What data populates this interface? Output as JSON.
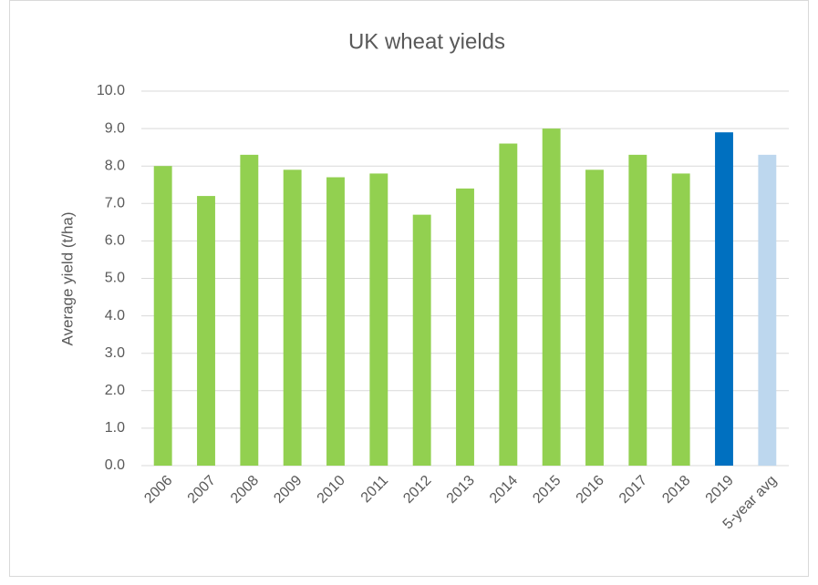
{
  "chart_data": {
    "type": "bar",
    "title": "UK wheat yields",
    "y_label": "Average yield (t/ha)",
    "categories": [
      "2006",
      "2007",
      "2008",
      "2009",
      "2010",
      "2011",
      "2012",
      "2013",
      "2014",
      "2015",
      "2016",
      "2017",
      "2018",
      "2019",
      "5-year avg"
    ],
    "values": [
      8.0,
      7.2,
      8.3,
      7.9,
      7.7,
      7.8,
      6.7,
      7.4,
      8.6,
      9.0,
      7.9,
      8.3,
      7.8,
      8.9,
      8.3
    ],
    "colors": [
      "#92d050",
      "#92d050",
      "#92d050",
      "#92d050",
      "#92d050",
      "#92d050",
      "#92d050",
      "#92d050",
      "#92d050",
      "#92d050",
      "#92d050",
      "#92d050",
      "#92d050",
      "#0070c0",
      "#bdd7ee"
    ],
    "ylim": [
      0,
      10
    ],
    "yticks": [
      {
        "value": 0,
        "label": "0.0"
      },
      {
        "value": 1,
        "label": "1.0"
      },
      {
        "value": 2,
        "label": "2.0"
      },
      {
        "value": 3,
        "label": "3.0"
      },
      {
        "value": 4,
        "label": "4.0"
      },
      {
        "value": 5,
        "label": "5.0"
      },
      {
        "value": 6,
        "label": "6.0"
      },
      {
        "value": 7,
        "label": "7.0"
      },
      {
        "value": 8,
        "label": "8.0"
      },
      {
        "value": 9,
        "label": "9.0"
      },
      {
        "value": 10,
        "label": "10.0"
      }
    ],
    "grid": true
  }
}
